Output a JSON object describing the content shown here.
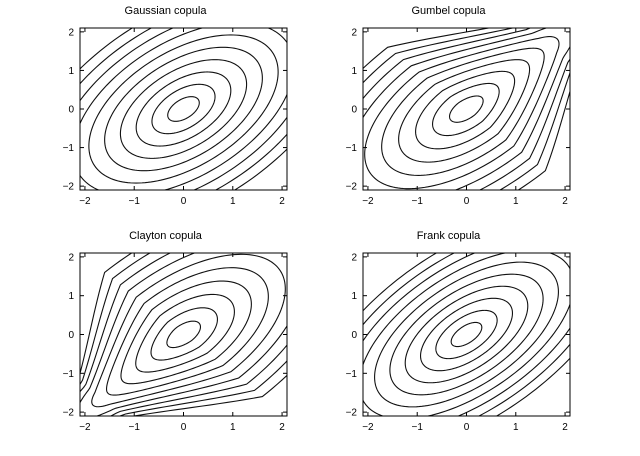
{
  "chart_data": [
    {
      "type": "contour",
      "title": "Gaussian copula",
      "family": "gaussian",
      "xlim": [
        -2.1,
        2.1
      ],
      "ylim": [
        -2.1,
        2.1
      ],
      "xticks": [
        -2,
        -1,
        0,
        1,
        2
      ],
      "yticks": [
        -2,
        -1,
        0,
        1,
        2
      ],
      "xtick_labels": [
        "−2",
        "−1",
        "0",
        "1",
        "2"
      ],
      "ytick_labels": [
        "−2",
        "−1",
        "0",
        "1",
        "2"
      ],
      "correlation": 0.5,
      "contour_levels": 10,
      "grid": false
    },
    {
      "type": "contour",
      "title": "Gumbel copula",
      "family": "gumbel",
      "xlim": [
        -2.1,
        2.1
      ],
      "ylim": [
        -2.1,
        2.1
      ],
      "xticks": [
        -2,
        -1,
        0,
        1,
        2
      ],
      "yticks": [
        -2,
        -1,
        0,
        1,
        2
      ],
      "xtick_labels": [
        "−2",
        "−1",
        "0",
        "1",
        "2"
      ],
      "ytick_labels": [
        "−2",
        "−1",
        "0",
        "1",
        "2"
      ],
      "correlation": 0.5,
      "contour_levels": 10,
      "grid": false
    },
    {
      "type": "contour",
      "title": "Clayton copula",
      "family": "clayton",
      "xlim": [
        -2.1,
        2.1
      ],
      "ylim": [
        -2.1,
        2.1
      ],
      "xticks": [
        -2,
        -1,
        0,
        1,
        2
      ],
      "yticks": [
        -2,
        -1,
        0,
        1,
        2
      ],
      "xtick_labels": [
        "−2",
        "−1",
        "0",
        "1",
        "2"
      ],
      "ytick_labels": [
        "−2",
        "−1",
        "0",
        "1",
        "2"
      ],
      "correlation": 0.5,
      "contour_levels": 10,
      "grid": false
    },
    {
      "type": "contour",
      "title": "Frank copula",
      "family": "frank",
      "xlim": [
        -2.1,
        2.1
      ],
      "ylim": [
        -2.1,
        2.1
      ],
      "xticks": [
        -2,
        -1,
        0,
        1,
        2
      ],
      "yticks": [
        -2,
        -1,
        0,
        1,
        2
      ],
      "xtick_labels": [
        "−2",
        "−1",
        "0",
        "1",
        "2"
      ],
      "ytick_labels": [
        "−2",
        "−1",
        "0",
        "1",
        "2"
      ],
      "correlation": 0.5,
      "contour_levels": 10,
      "grid": false
    }
  ],
  "colors": {
    "line": "#111111",
    "axes": "#000000",
    "background": "#ffffff"
  }
}
